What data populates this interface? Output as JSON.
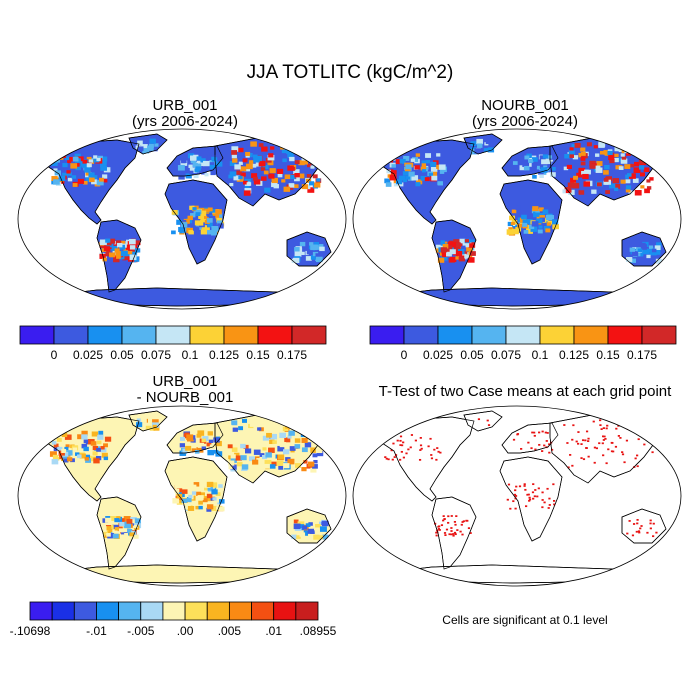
{
  "title": "JJA TOTLITC (kgC/m^2)",
  "panels": [
    {
      "line1": "URB_001",
      "line2": "(yrs 2006-2024)"
    },
    {
      "line1": "NOURB_001",
      "line2": "(yrs 2006-2024)"
    },
    {
      "line1": "URB_001",
      "line2": "- NOURB_001"
    },
    {
      "line1": "T-Test of two Case means at each grid point",
      "line2": ""
    }
  ],
  "colorbar_top": {
    "colors": [
      "#3a1df0",
      "#3d5ae0",
      "#1890f0",
      "#55b4f0",
      "#c5e6f5",
      "#fcd236",
      "#f99414",
      "#f31212",
      "#d22828"
    ],
    "ticks": [
      "0",
      "0.025",
      "0.05",
      "0.075",
      "0.1",
      "0.125",
      "0.15",
      "0.175"
    ]
  },
  "colorbar_diff": {
    "colors": [
      "#3a1df0",
      "#1a30e6",
      "#3d5ae0",
      "#1890f0",
      "#55b4f0",
      "#a9d9f5",
      "#fdf5b4",
      "#fde05a",
      "#f9b420",
      "#f98a14",
      "#f35012",
      "#e81212",
      "#c81e1e"
    ],
    "ticks": [
      "-.10698",
      "-.01",
      "-.005",
      ".00",
      ".005",
      ".01",
      ".08955"
    ]
  },
  "note": "Cells are significant at 0.1 level",
  "map_colors": {
    "ocean": "#ffffff",
    "border": "#000000",
    "antarctica_abs": "#3d5ae0",
    "antarctica_diff": "#fdf5b4",
    "signif": "#e81212"
  }
}
